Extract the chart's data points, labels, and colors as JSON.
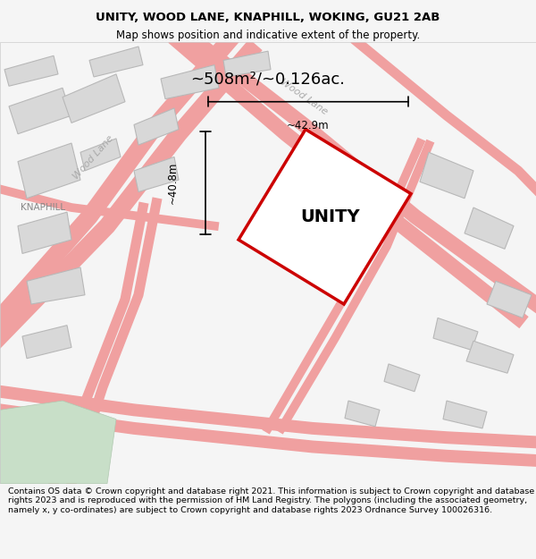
{
  "title_line1": "UNITY, WOOD LANE, KNAPHILL, WOKING, GU21 2AB",
  "title_line2": "Map shows position and indicative extent of the property.",
  "area_text": "~508m²/~0.126ac.",
  "unity_label": "UNITY",
  "dim_height": "~40.8m",
  "dim_width": "~42.9m",
  "footer_text": "Contains OS data © Crown copyright and database right 2021. This information is subject to Crown copyright and database rights 2023 and is reproduced with the permission of HM Land Registry. The polygons (including the associated geometry, namely x, y co-ordinates) are subject to Crown copyright and database rights 2023 Ordnance Survey 100026316.",
  "bg_color": "#f5f5f5",
  "map_bg": "#ffffff",
  "road_color": "#f0a0a0",
  "building_color": "#d8d8d8",
  "building_edge": "#b0b0b0",
  "highlight_color": "#cc0000",
  "text_color": "#000000",
  "road_label_color": "#aaaaaa",
  "knaphill_label": "KNAPHILL",
  "wood_lane_label1": "Wood Lane",
  "wood_lane_label2": "Wood Lane"
}
